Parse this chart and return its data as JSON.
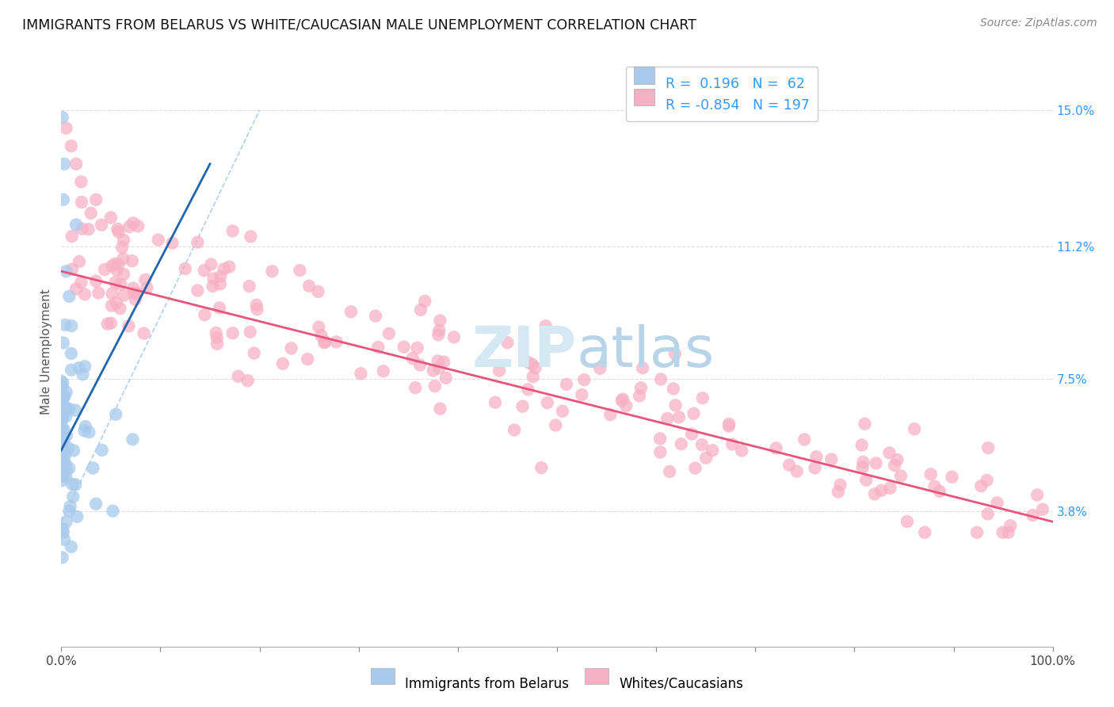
{
  "title": "IMMIGRANTS FROM BELARUS VS WHITE/CAUCASIAN MALE UNEMPLOYMENT CORRELATION CHART",
  "source": "Source: ZipAtlas.com",
  "ylabel": "Male Unemployment",
  "right_yticks": [
    3.8,
    7.5,
    11.2,
    15.0
  ],
  "right_ytick_labels": [
    "3.8%",
    "7.5%",
    "11.2%",
    "15.0%"
  ],
  "xmin": 0.0,
  "xmax": 100.0,
  "ymin": 0.0,
  "ymax": 16.5,
  "legend_r_blue": "0.196",
  "legend_n_blue": "62",
  "legend_r_pink": "-0.854",
  "legend_n_pink": "197",
  "blue_color": "#A8CAEC",
  "pink_color": "#F7B0C5",
  "blue_line_color": "#2166AC",
  "pink_line_color": "#E8547A",
  "diag_color": "#9EC4E8",
  "watermark_color": "#D5E9F5",
  "background_color": "#FFFFFF",
  "grid_color": "#DDDDDD",
  "title_fontsize": 12.5,
  "source_fontsize": 10,
  "seed": 99
}
